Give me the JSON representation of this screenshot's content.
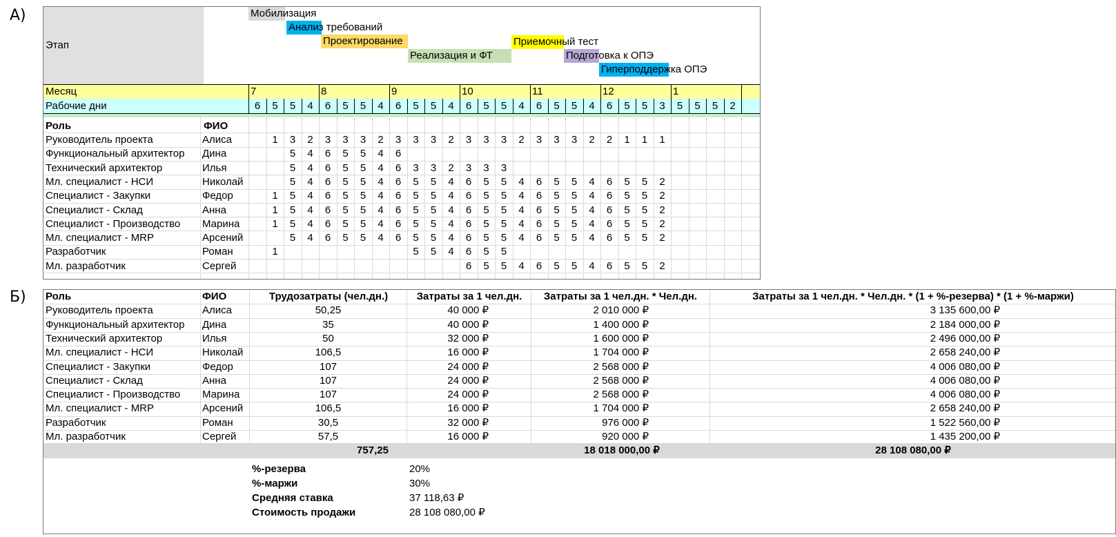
{
  "section_a_label": "А)",
  "section_b_label": "Б)",
  "gantt": {
    "stage_label": "Этап",
    "month_label": "Месяц",
    "workdays_label": "Рабочие дни",
    "role_header": "Роль",
    "name_header": "ФИО",
    "stages": [
      {
        "label": "Мобилизация",
        "color": "#d9d9d9"
      },
      {
        "label": "Анализ требований",
        "color": "#00b0f0"
      },
      {
        "label": "Проектирование",
        "color": "#ffd966"
      },
      {
        "label": "Реализация и ФТ",
        "color": "#c6e0b4"
      },
      {
        "label": "Приемочный тест",
        "color": "#ffff00"
      },
      {
        "label": "Подготовка к ОПЭ",
        "color": "#b4a7d6"
      },
      {
        "label": "Гиперподдержка ОПЭ",
        "color": "#00b0f0"
      }
    ],
    "months": [
      "7",
      "8",
      "9",
      "10",
      "11",
      "12",
      "1"
    ],
    "workdays": [
      6,
      5,
      5,
      4,
      6,
      5,
      5,
      4,
      6,
      5,
      5,
      4,
      6,
      5,
      5,
      4,
      6,
      5,
      5,
      4,
      6,
      5,
      5,
      3,
      5,
      5,
      5,
      2
    ],
    "rows": [
      {
        "role": "Руководитель проекта",
        "name": "Алиса",
        "values": [
          "",
          1,
          3,
          2,
          3,
          3,
          3,
          2,
          3,
          3,
          3,
          2,
          3,
          3,
          3,
          2,
          3,
          3,
          3,
          2,
          2,
          1,
          1,
          1,
          "",
          "",
          "",
          ""
        ]
      },
      {
        "role": "Функциональный архитектор",
        "name": "Дина",
        "values": [
          "",
          "",
          5,
          4,
          6,
          5,
          5,
          4,
          6,
          "",
          "",
          "",
          "",
          "",
          "",
          "",
          "",
          "",
          "",
          "",
          "",
          "",
          "",
          "",
          "",
          "",
          "",
          ""
        ]
      },
      {
        "role": "Технический архитектор",
        "name": "Илья",
        "values": [
          "",
          "",
          5,
          4,
          6,
          5,
          5,
          4,
          6,
          3,
          3,
          2,
          3,
          3,
          3,
          "",
          "",
          "",
          "",
          "",
          "",
          "",
          "",
          "",
          "",
          "",
          "",
          ""
        ]
      },
      {
        "role": "Мл. специалист - НСИ",
        "name": "Николай",
        "values": [
          "",
          "",
          5,
          4,
          6,
          5,
          5,
          4,
          6,
          5,
          5,
          4,
          6,
          5,
          5,
          4,
          6,
          5,
          5,
          4,
          6,
          5,
          5,
          2,
          "",
          "",
          "",
          ""
        ]
      },
      {
        "role": "Специалист - Закупки",
        "name": "Федор",
        "values": [
          "",
          1,
          5,
          4,
          6,
          5,
          5,
          4,
          6,
          5,
          5,
          4,
          6,
          5,
          5,
          4,
          6,
          5,
          5,
          4,
          6,
          5,
          5,
          2,
          "",
          "",
          "",
          ""
        ]
      },
      {
        "role": "Специалист - Склад",
        "name": "Анна",
        "values": [
          "",
          1,
          5,
          4,
          6,
          5,
          5,
          4,
          6,
          5,
          5,
          4,
          6,
          5,
          5,
          4,
          6,
          5,
          5,
          4,
          6,
          5,
          5,
          2,
          "",
          "",
          "",
          ""
        ]
      },
      {
        "role": "Специалист - Производство",
        "name": "Марина",
        "values": [
          "",
          1,
          5,
          4,
          6,
          5,
          5,
          4,
          6,
          5,
          5,
          4,
          6,
          5,
          5,
          4,
          6,
          5,
          5,
          4,
          6,
          5,
          5,
          2,
          "",
          "",
          "",
          ""
        ]
      },
      {
        "role": "Мл. специалист - MRP",
        "name": "Арсений",
        "values": [
          "",
          "",
          5,
          4,
          6,
          5,
          5,
          4,
          6,
          5,
          5,
          4,
          6,
          5,
          5,
          4,
          6,
          5,
          5,
          4,
          6,
          5,
          5,
          2,
          "",
          "",
          "",
          ""
        ]
      },
      {
        "role": "Разработчик",
        "name": "Роман",
        "values": [
          "",
          1,
          "",
          "",
          "",
          "",
          "",
          "",
          "",
          5,
          5,
          4,
          6,
          5,
          5,
          "",
          "",
          "",
          "",
          "",
          "",
          "",
          "",
          "",
          "",
          "",
          "",
          ""
        ]
      },
      {
        "role": "Мл. разработчик",
        "name": "Сергей",
        "values": [
          "",
          "",
          "",
          "",
          "",
          "",
          "",
          "",
          "",
          "",
          "",
          "",
          6,
          5,
          5,
          4,
          6,
          5,
          5,
          4,
          6,
          5,
          5,
          2,
          "",
          "",
          "",
          ""
        ]
      }
    ]
  },
  "costs": {
    "headers": [
      "Роль",
      "ФИО",
      "Трудозатраты (чел.дн.)",
      "Затраты за 1 чел.дн.",
      "Затраты за 1 чел.дн. * Чел.дн.",
      "Затраты за 1 чел.дн. * Чел.дн. * (1 + %-резерва) * (1 + %-маржи)"
    ],
    "rows": [
      [
        "Руководитель проекта",
        "Алиса",
        "50,25",
        "40 000 ₽",
        "2 010 000 ₽",
        "3 135 600,00 ₽"
      ],
      [
        "Функциональный архитектор",
        "Дина",
        "35",
        "40 000 ₽",
        "1 400 000 ₽",
        "2 184 000,00 ₽"
      ],
      [
        "Технический архитектор",
        "Илья",
        "50",
        "32 000 ₽",
        "1 600 000 ₽",
        "2 496 000,00 ₽"
      ],
      [
        "Мл. специалист - НСИ",
        "Николай",
        "106,5",
        "16 000 ₽",
        "1 704 000 ₽",
        "2 658 240,00 ₽"
      ],
      [
        "Специалист - Закупки",
        "Федор",
        "107",
        "24 000 ₽",
        "2 568 000 ₽",
        "4 006 080,00 ₽"
      ],
      [
        "Специалист - Склад",
        "Анна",
        "107",
        "24 000 ₽",
        "2 568 000 ₽",
        "4 006 080,00 ₽"
      ],
      [
        "Специалист - Производство",
        "Марина",
        "107",
        "24 000 ₽",
        "2 568 000 ₽",
        "4 006 080,00 ₽"
      ],
      [
        "Мл. специалист - MRP",
        "Арсений",
        "106,5",
        "16 000 ₽",
        "1 704 000 ₽",
        "2 658 240,00 ₽"
      ],
      [
        "Разработчик",
        "Роман",
        "30,5",
        "32 000 ₽",
        "976 000 ₽",
        "1 522 560,00 ₽"
      ],
      [
        "Мл. разработчик",
        "Сергей",
        "57,5",
        "16 000 ₽",
        "920 000 ₽",
        "1 435 200,00 ₽"
      ]
    ],
    "totals": {
      "effort": "757,25",
      "cost": "18 018 000,00 ₽",
      "price": "28 108 080,00 ₽"
    },
    "summary": [
      {
        "label": "%-резерва",
        "value": "20%"
      },
      {
        "label": "%-маржи",
        "value": "30%"
      },
      {
        "label": "Средняя ставка",
        "value": "37 118,63 ₽"
      },
      {
        "label": "Стоимость продажи",
        "value": "28 108 080,00 ₽"
      }
    ]
  }
}
